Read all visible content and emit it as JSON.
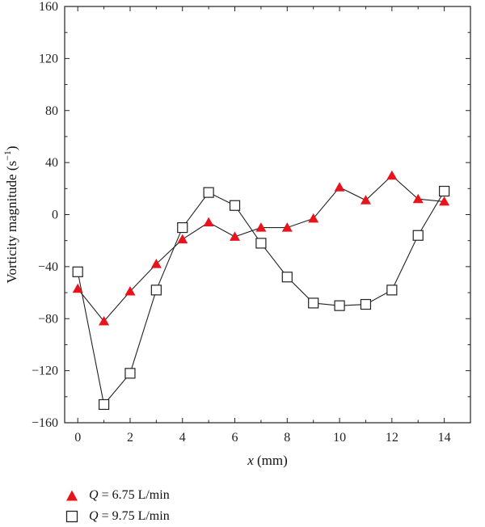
{
  "chart_data": {
    "type": "line",
    "xlabel_var": "x",
    "xlabel_unit": " (mm)",
    "ylabel_main": "Vorticity magnitude (s",
    "ylabel_sup": "−1",
    "ylabel_close": ")",
    "xlim": [
      -0.5,
      15
    ],
    "ylim": [
      -160,
      160
    ],
    "xticks": [
      0,
      2,
      4,
      6,
      8,
      10,
      12,
      14
    ],
    "yticks": [
      -160,
      -120,
      -80,
      -40,
      0,
      40,
      80,
      120,
      160
    ],
    "x": [
      0,
      1,
      2,
      3,
      4,
      5,
      6,
      7,
      8,
      9,
      10,
      11,
      12,
      13,
      14
    ],
    "series": [
      {
        "name": "Q = 6.75 L/min",
        "name_var": "Q",
        "name_rest": " = 6.75 L/min",
        "marker": "triangle",
        "color": "#e8141b",
        "values": [
          -57,
          -82,
          -59,
          -38,
          -19,
          -6,
          -17,
          -10,
          -10,
          -3,
          21,
          11,
          30,
          12,
          10
        ]
      },
      {
        "name": "Q = 9.75 L/min",
        "name_var": "Q",
        "name_rest": " = 9.75 L/min",
        "marker": "square",
        "color": "#ffffff",
        "values": [
          -44,
          -146,
          -122,
          -58,
          -10,
          17,
          7,
          -22,
          -48,
          -68,
          -70,
          -69,
          -58,
          -16,
          18
        ]
      }
    ]
  }
}
